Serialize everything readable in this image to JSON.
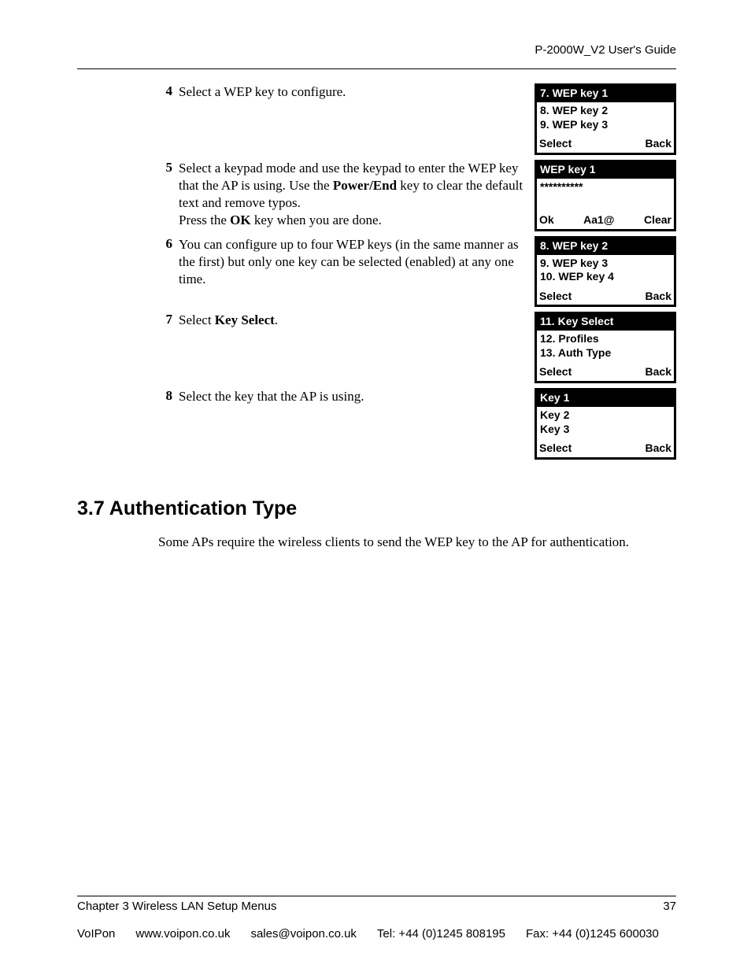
{
  "header": {
    "guide_title": "P-2000W_V2 User's Guide"
  },
  "steps": [
    {
      "num": "4",
      "text_html": "Select a WEP key to configure.",
      "screen": {
        "title": "7. WEP key 1",
        "lines": [
          "8. WEP key 2",
          "9. WEP key 3"
        ],
        "softkeys": [
          "Select",
          "",
          "Back"
        ]
      }
    },
    {
      "num": "5",
      "text_html": "Select a keypad mode and use the keypad to enter the WEP key that the AP is using. Use the <b>Power/End</b> key to clear the default text and remove typos.<br>Press the <b>OK</b> key when you are done.",
      "screen": {
        "title": "WEP key 1",
        "lines": [
          "**********"
        ],
        "softkeys": [
          "Ok",
          "Aa1@",
          "Clear"
        ]
      }
    },
    {
      "num": "6",
      "text_html": "You can configure up to four WEP keys (in the same manner as the first) but only one key can be selected (enabled) at any one time.",
      "screen": {
        "title": "8. WEP key 2",
        "lines": [
          "9. WEP key 3",
          "10. WEP key 4"
        ],
        "softkeys": [
          "Select",
          "",
          "Back"
        ]
      }
    },
    {
      "num": "7",
      "text_html": "Select <b>Key Select</b>.",
      "screen": {
        "title": "11. Key Select",
        "lines": [
          "12. Profiles",
          "13. Auth Type"
        ],
        "softkeys": [
          "Select",
          "",
          "Back"
        ]
      }
    },
    {
      "num": "8",
      "text_html": "Select the key that the AP is using.",
      "screen": {
        "title": "Key 1",
        "lines": [
          "Key 2",
          "Key 3"
        ],
        "softkeys": [
          "Select",
          "",
          "Back"
        ]
      }
    }
  ],
  "section": {
    "heading": "3.7  Authentication Type",
    "para": "Some APs require the wireless clients to send the WEP key to the AP for authentication."
  },
  "footer": {
    "chapter": "Chapter 3 Wireless LAN Setup Menus",
    "page_num": "37",
    "company": "VoIPon",
    "url": "www.voipon.co.uk",
    "email": "sales@voipon.co.uk",
    "tel": "Tel: +44 (0)1245 808195",
    "fax": "Fax: +44 (0)1245 600030"
  }
}
